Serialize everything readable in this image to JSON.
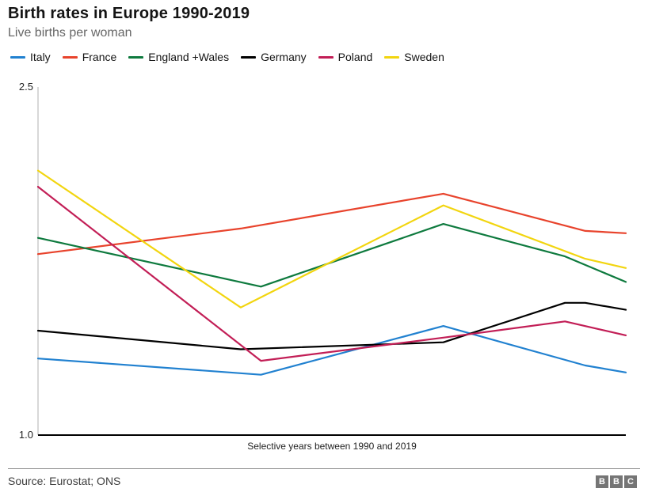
{
  "header": {
    "title": "Birth rates in Europe 1990-2019",
    "subtitle": "Live births per woman"
  },
  "axis": {
    "top_tick": "2.5",
    "bottom_tick": "1.0",
    "xlabel": "Selective years between 1990 and 2019"
  },
  "footer": {
    "source": "Source: Eurostat; ONS",
    "logo_letters": [
      "B",
      "B",
      "C"
    ]
  },
  "chart_data": {
    "type": "line",
    "title": "Birth rates in Europe 1990-2019",
    "subtitle": "Live births per woman",
    "xlabel": "Selective years between 1990 and 2019",
    "ylabel": "Live births per woman",
    "ylim": [
      1.0,
      2.5
    ],
    "yticks": [
      1.0,
      2.5
    ],
    "x_range_years": [
      1990,
      2019
    ],
    "grid": false,
    "legend_position": "top",
    "axis_color": "#cccccc",
    "baseline_color": "#000000",
    "series": [
      {
        "name": "Italy",
        "color": "#2181d0",
        "points": [
          [
            1990,
            1.33
          ],
          [
            2001,
            1.26
          ],
          [
            2010,
            1.47
          ],
          [
            2017,
            1.3
          ],
          [
            2019,
            1.27
          ]
        ]
      },
      {
        "name": "France",
        "color": "#e8432c",
        "points": [
          [
            1990,
            1.78
          ],
          [
            2000,
            1.89
          ],
          [
            2010,
            2.04
          ],
          [
            2017,
            1.88
          ],
          [
            2019,
            1.87
          ]
        ]
      },
      {
        "name": "England +Wales",
        "color": "#0e7a3e",
        "points": [
          [
            1990,
            1.85
          ],
          [
            2001,
            1.64
          ],
          [
            2010,
            1.91
          ],
          [
            2016,
            1.77
          ],
          [
            2019,
            1.66
          ]
        ]
      },
      {
        "name": "Germany",
        "color": "#000000",
        "points": [
          [
            1990,
            1.45
          ],
          [
            2000,
            1.37
          ],
          [
            2010,
            1.4
          ],
          [
            2016,
            1.57
          ],
          [
            2017,
            1.57
          ],
          [
            2019,
            1.54
          ]
        ]
      },
      {
        "name": "Poland",
        "color": "#c21e56",
        "points": [
          [
            1990,
            2.07
          ],
          [
            2001,
            1.32
          ],
          [
            2010,
            1.42
          ],
          [
            2016,
            1.49
          ],
          [
            2019,
            1.43
          ]
        ]
      },
      {
        "name": "Sweden",
        "color": "#f2d50f",
        "points": [
          [
            1990,
            2.14
          ],
          [
            2000,
            1.55
          ],
          [
            2010,
            1.99
          ],
          [
            2017,
            1.76
          ],
          [
            2019,
            1.72
          ]
        ]
      }
    ]
  }
}
